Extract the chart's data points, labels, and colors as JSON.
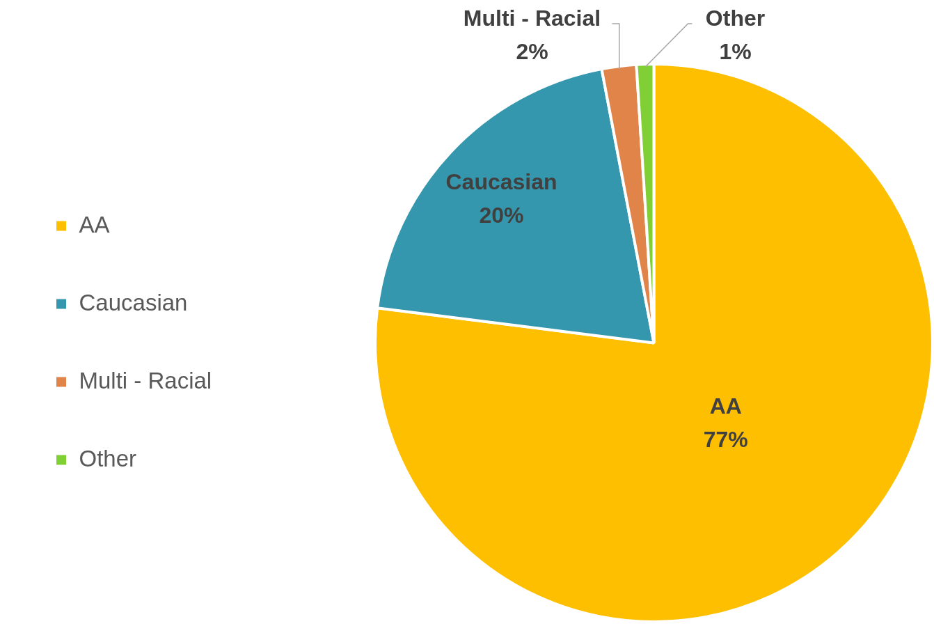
{
  "chart_data": {
    "type": "pie",
    "categories": [
      "AA",
      "Caucasian",
      "Multi - Racial",
      "Other"
    ],
    "values": [
      77,
      20,
      2,
      1
    ],
    "colors": [
      "#fdbf00",
      "#3497ad",
      "#e0844a",
      "#7fcf35"
    ],
    "value_labels": [
      "77%",
      "20%",
      "2%",
      "1%"
    ],
    "legend": "left"
  }
}
